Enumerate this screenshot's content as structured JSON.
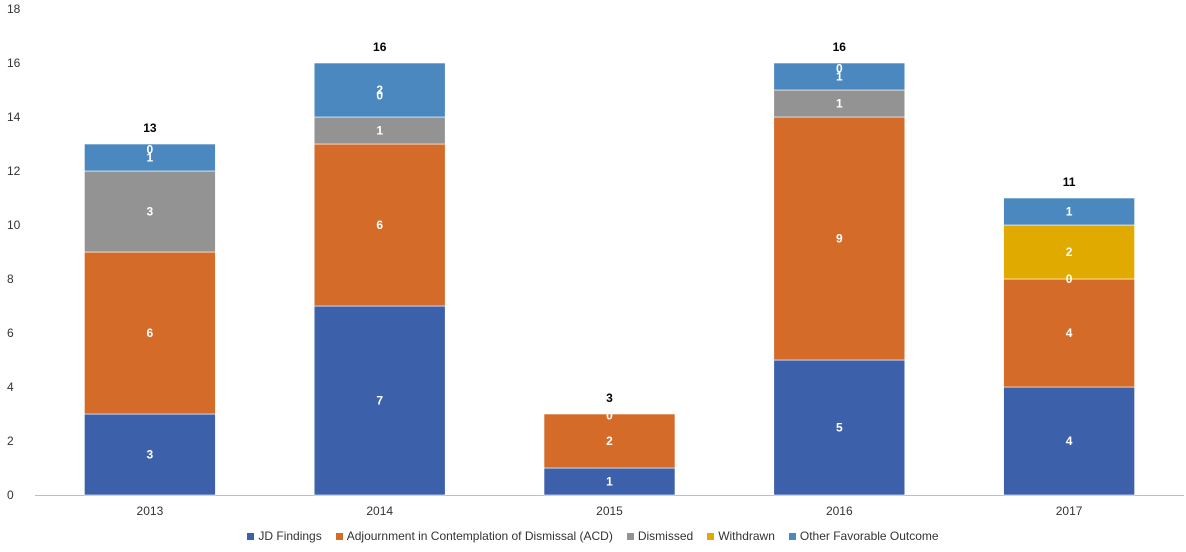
{
  "chart_data": {
    "type": "bar",
    "stacked": true,
    "categories": [
      "2013",
      "2014",
      "2015",
      "2016",
      "2017"
    ],
    "series": [
      {
        "name": "JD Findings",
        "color": "#3c61aa",
        "values": [
          3,
          7,
          1,
          5,
          4
        ]
      },
      {
        "name": "Adjournment in Contemplation of Dismissal (ACD)",
        "color": "#d46b28",
        "values": [
          6,
          6,
          2,
          9,
          4
        ]
      },
      {
        "name": "Dismissed",
        "color": "#939393",
        "values": [
          3,
          1,
          0,
          1,
          0
        ]
      },
      {
        "name": "Withdrawn",
        "color": "#e0aa00",
        "values": [
          0,
          0,
          0,
          0,
          2
        ]
      },
      {
        "name": "Other Favorable Outcome",
        "color": "#4b88bf",
        "values": [
          1,
          2,
          0,
          1,
          1
        ]
      }
    ],
    "segment_labels": [
      [
        "3",
        "6",
        "3",
        "",
        "1"
      ],
      [
        "7",
        "6",
        "1",
        "",
        "2"
      ],
      [
        "1",
        "2",
        "0",
        "",
        ""
      ],
      [
        "5",
        "9",
        "1",
        "",
        "1"
      ],
      [
        "4",
        "4",
        "",
        "2",
        "1"
      ]
    ],
    "zero_labels": [
      {
        "category": "2013",
        "text": "0",
        "at": 12.8
      },
      {
        "category": "2014",
        "text": "0",
        "at": 14.8
      },
      {
        "category": "2015",
        "text": "0",
        "at": 2.95
      },
      {
        "category": "2016",
        "text": "0",
        "at": 15.8
      },
      {
        "category": "2017",
        "text": "0",
        "at": 8.0
      }
    ],
    "totals": [
      "13",
      "16",
      "3",
      "16",
      "11"
    ],
    "yticks": [
      "0",
      "2",
      "4",
      "6",
      "8",
      "10",
      "12",
      "14",
      "16",
      "18"
    ],
    "ylim": [
      0,
      18
    ],
    "grid": false,
    "legend_position": "bottom",
    "title": "",
    "xlabel": "",
    "ylabel": ""
  }
}
